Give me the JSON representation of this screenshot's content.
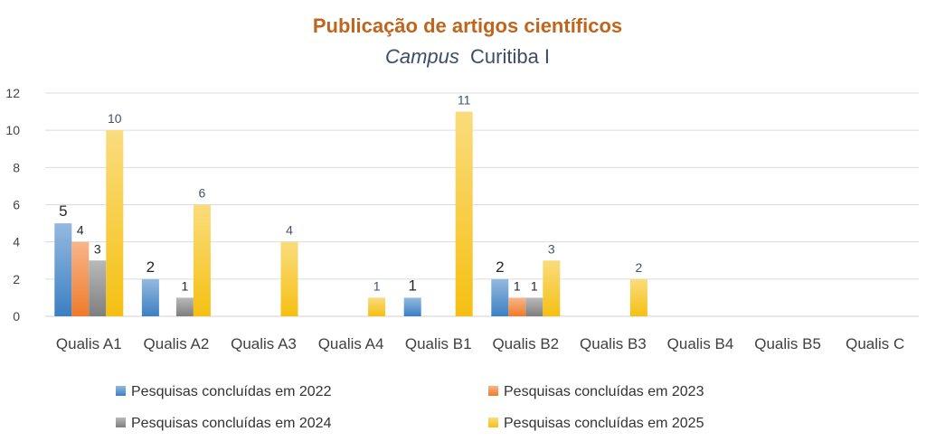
{
  "chart_data": {
    "type": "bar",
    "title": "Publicação de artigos científicos",
    "subtitle_italic": "Campus",
    "subtitle_rest": "Curitiba I",
    "categories": [
      "Qualis A1",
      "Qualis A2",
      "Qualis A3",
      "Qualis A4",
      "Qualis B1",
      "Qualis B2",
      "Qualis B3",
      "Qualis B4",
      "Qualis B5",
      "Qualis C"
    ],
    "series": [
      {
        "name": "Pesquisas concluídas em 2022",
        "values": [
          5,
          2,
          0,
          0,
          1,
          2,
          0,
          0,
          0,
          0
        ],
        "labels": [
          "5",
          "2",
          "",
          "",
          "1",
          "2",
          "",
          "",
          "",
          ""
        ],
        "color": "#3c7fc4"
      },
      {
        "name": "Pesquisas concluídas em 2023",
        "values": [
          4,
          0,
          0,
          0,
          0,
          1,
          0,
          0,
          0,
          0
        ],
        "labels": [
          "4",
          "",
          "",
          "",
          "",
          "1",
          "",
          "",
          "",
          ""
        ],
        "color": "#f07a2a"
      },
      {
        "name": "Pesquisas concluídas em 2024",
        "values": [
          3,
          1,
          0,
          0,
          0,
          1,
          0,
          0,
          0,
          0
        ],
        "labels": [
          "3",
          "1",
          "",
          "",
          "",
          "1",
          "",
          "",
          "",
          ""
        ],
        "color": "#7f7f7f"
      },
      {
        "name": "Pesquisas concluídas em 2025",
        "values": [
          10,
          6,
          4,
          1,
          11,
          3,
          2,
          0,
          0,
          0
        ],
        "labels": [
          "10",
          "6",
          "4",
          "1",
          "11",
          "3",
          "2",
          "",
          "",
          ""
        ],
        "color": "#f5c012"
      }
    ],
    "yticks": [
      "0",
      "2",
      "4",
      "6",
      "8",
      "10",
      "12"
    ],
    "ylim": [
      0,
      12
    ],
    "grid": true,
    "legend": "bottom",
    "title_color": "#c0651d",
    "subtitle_color": "#3c4d66"
  }
}
